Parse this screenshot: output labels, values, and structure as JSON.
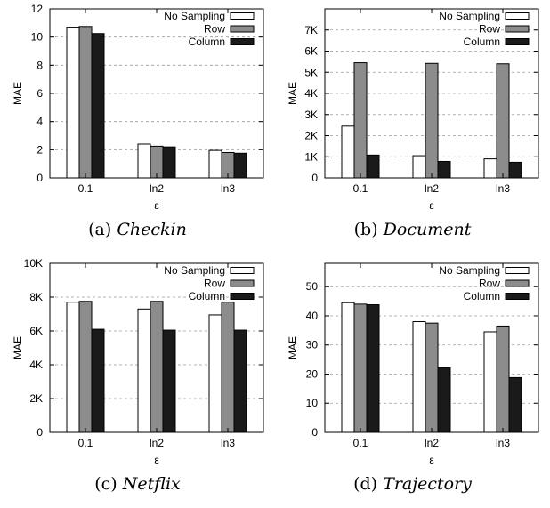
{
  "chart_data": [
    {
      "type": "bar",
      "caption_prefix": "(a)",
      "caption_name": "Checkin",
      "xlabel": "ε",
      "ylabel": "MAE",
      "categories": [
        "0.1",
        "ln2",
        "ln3"
      ],
      "ylim": [
        0,
        12
      ],
      "yticks": [
        0,
        2,
        4,
        6,
        8,
        10,
        12
      ],
      "ytick_labels": [
        "0",
        "2",
        "4",
        "6",
        "8",
        "10",
        "12"
      ],
      "grid": true,
      "legend_position": "top-right",
      "series": [
        {
          "name": "No Sampling",
          "color": "#ffffff",
          "values": [
            10.7,
            2.4,
            1.95
          ]
        },
        {
          "name": "Row",
          "color": "#8c8c8c",
          "values": [
            10.75,
            2.25,
            1.8
          ]
        },
        {
          "name": "Column",
          "color": "#1a1a1a",
          "values": [
            10.25,
            2.2,
            1.75
          ]
        }
      ]
    },
    {
      "type": "bar",
      "caption_prefix": "(b)",
      "caption_name": "Document",
      "xlabel": "ε",
      "ylabel": "MAE",
      "categories": [
        "0.1",
        "ln2",
        "ln3"
      ],
      "ylim": [
        0,
        8000
      ],
      "yticks": [
        0,
        1000,
        2000,
        3000,
        4000,
        5000,
        6000,
        7000
      ],
      "ytick_labels": [
        "0",
        "1K",
        "2K",
        "3K",
        "4K",
        "5K",
        "6K",
        "7K"
      ],
      "grid": true,
      "legend_position": "top-right",
      "series": [
        {
          "name": "No Sampling",
          "color": "#ffffff",
          "values": [
            2450,
            1050,
            900
          ]
        },
        {
          "name": "Row",
          "color": "#8c8c8c",
          "values": [
            5450,
            5420,
            5400
          ]
        },
        {
          "name": "Column",
          "color": "#1a1a1a",
          "values": [
            1080,
            780,
            740
          ]
        }
      ]
    },
    {
      "type": "bar",
      "caption_prefix": "(c)",
      "caption_name": "Netflix",
      "xlabel": "ε",
      "ylabel": "MAE",
      "categories": [
        "0.1",
        "ln2",
        "ln3"
      ],
      "ylim": [
        0,
        10000
      ],
      "yticks": [
        0,
        2000,
        4000,
        6000,
        8000,
        10000
      ],
      "ytick_labels": [
        "0",
        "2K",
        "4K",
        "6K",
        "8K",
        "10K"
      ],
      "grid": true,
      "legend_position": "top-right",
      "series": [
        {
          "name": "No Sampling",
          "color": "#ffffff",
          "values": [
            7700,
            7300,
            6950
          ]
        },
        {
          "name": "Row",
          "color": "#8c8c8c",
          "values": [
            7750,
            7750,
            7700
          ]
        },
        {
          "name": "Column",
          "color": "#1a1a1a",
          "values": [
            6100,
            6050,
            6050
          ]
        }
      ]
    },
    {
      "type": "bar",
      "caption_prefix": "(d)",
      "caption_name": "Trajectory",
      "xlabel": "ε",
      "ylabel": "MAE",
      "categories": [
        "0.1",
        "ln2",
        "ln3"
      ],
      "ylim": [
        0,
        58
      ],
      "yticks": [
        0,
        10,
        20,
        30,
        40,
        50
      ],
      "ytick_labels": [
        "0",
        "10",
        "20",
        "30",
        "40",
        "50"
      ],
      "grid": true,
      "legend_position": "top-right",
      "series": [
        {
          "name": "No Sampling",
          "color": "#ffffff",
          "values": [
            44.5,
            38,
            34.5
          ]
        },
        {
          "name": "Row",
          "color": "#8c8c8c",
          "values": [
            44,
            37.5,
            36.5
          ]
        },
        {
          "name": "Column",
          "color": "#1a1a1a",
          "values": [
            43.8,
            22.2,
            18.8
          ]
        }
      ]
    }
  ]
}
